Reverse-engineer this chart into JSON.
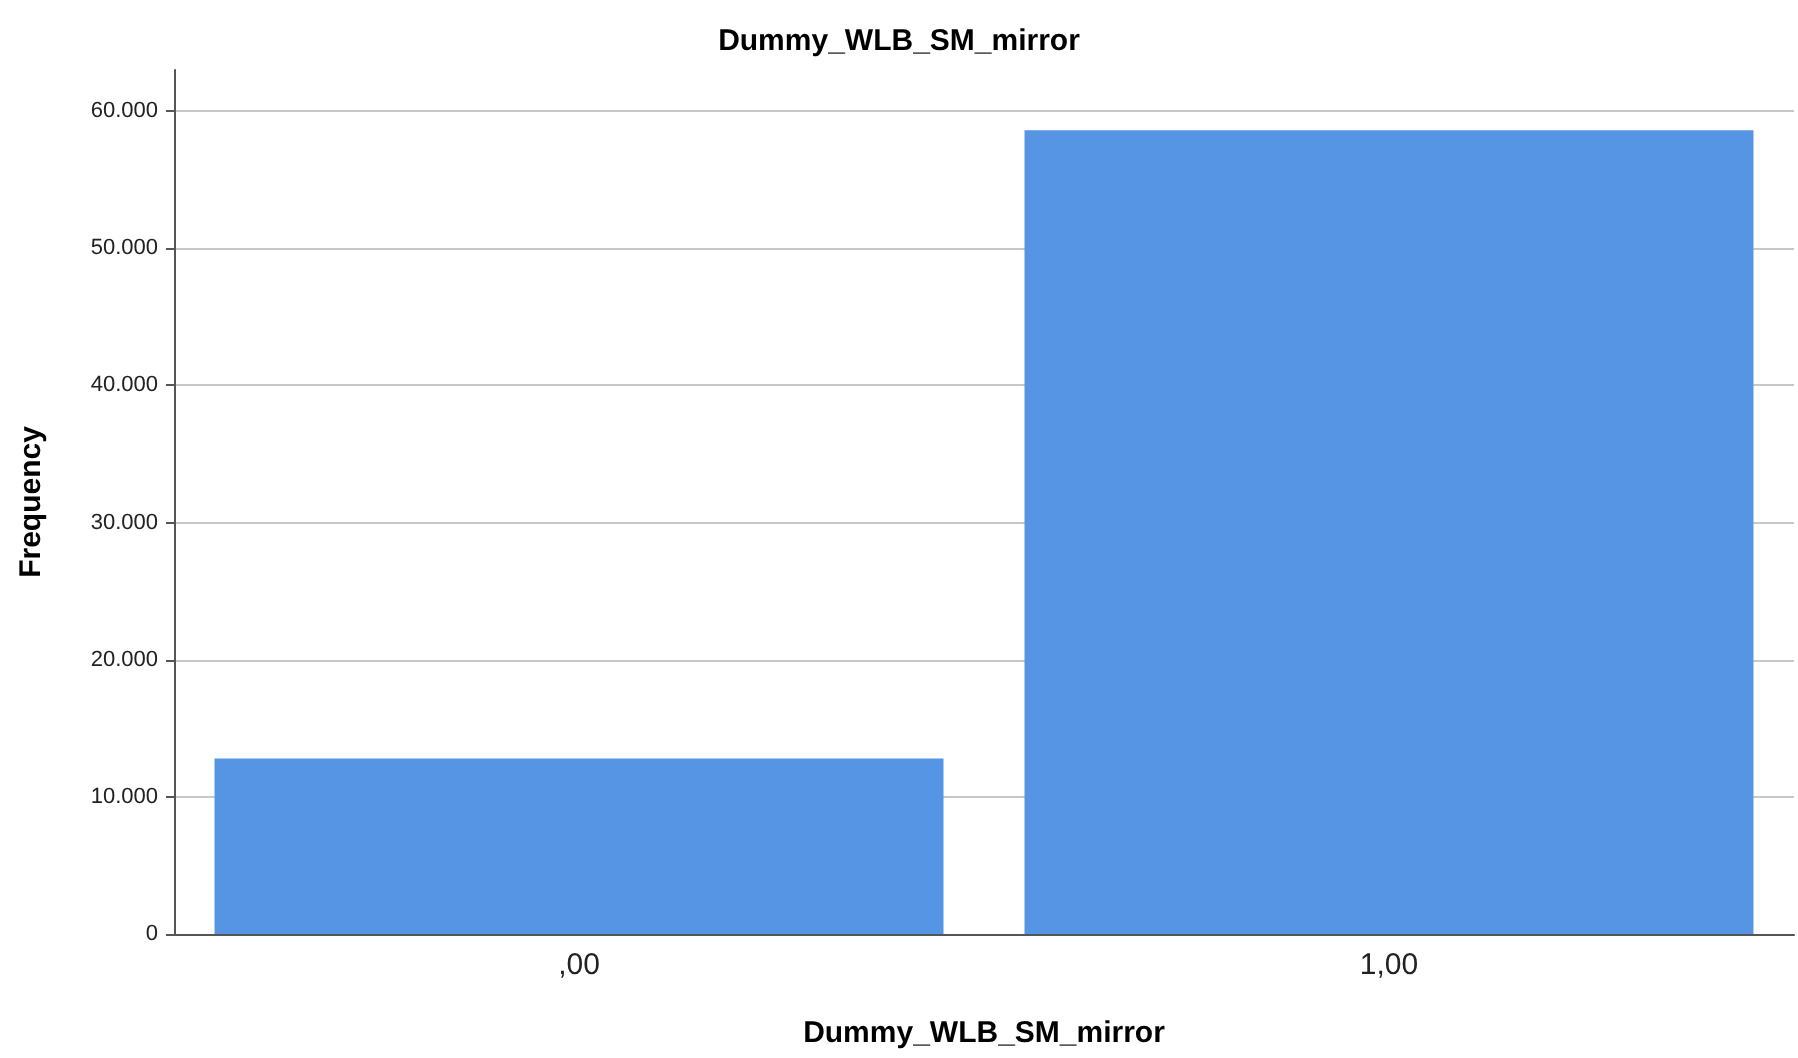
{
  "chart_data": {
    "type": "bar",
    "title": "Dummy_WLB_SM_mirror",
    "xlabel": "Dummy_WLB_SM_mirror",
    "ylabel": "Frequency",
    "categories": [
      ",00",
      "1,00"
    ],
    "values": [
      12800,
      58600
    ],
    "color": "#5595e3",
    "ylim": [
      0,
      63000
    ],
    "yticks": [
      0,
      {
        "value": 10000,
        "label": "10.000"
      },
      {
        "value": 20000,
        "label": "20.000"
      },
      {
        "value": 30000,
        "label": "30.000"
      },
      {
        "value": 40000,
        "label": "40.000"
      },
      {
        "value": 50000,
        "label": "50.000"
      },
      {
        "value": 60000,
        "label": "60.000"
      }
    ],
    "grid": "y"
  }
}
